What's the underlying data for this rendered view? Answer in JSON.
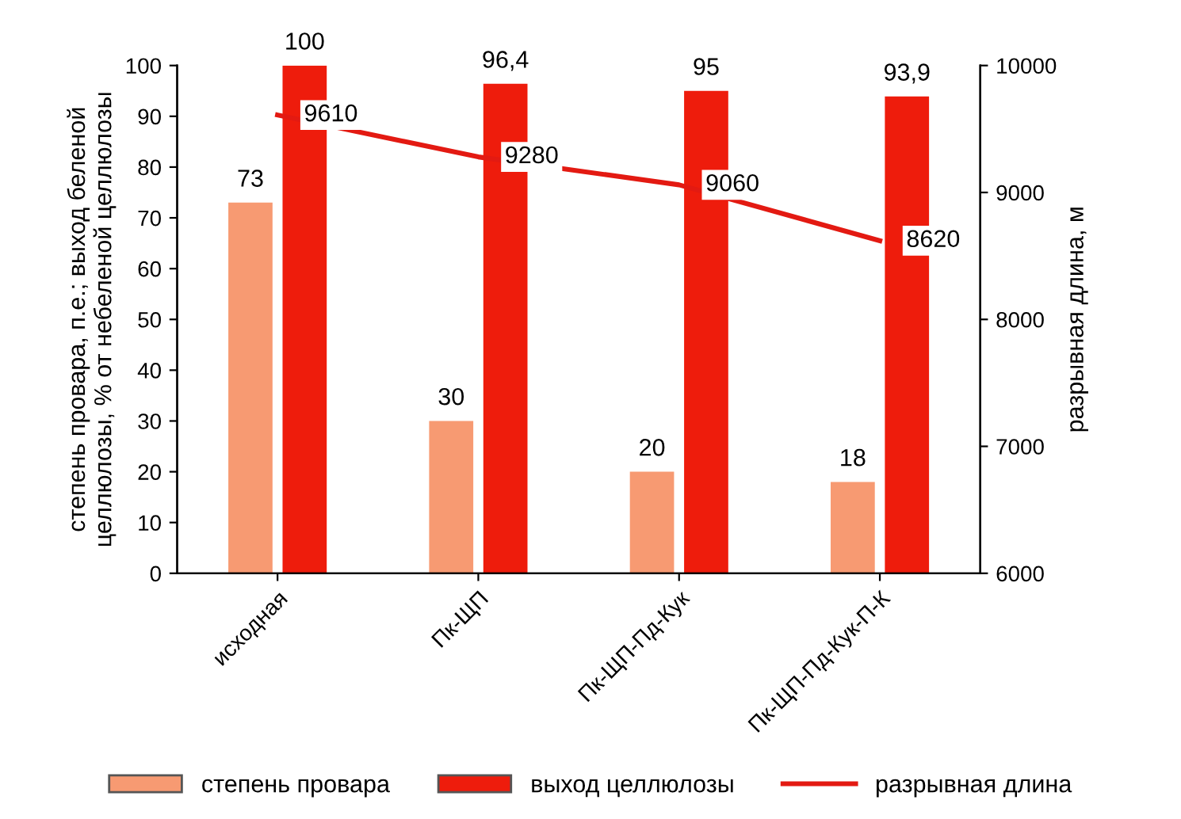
{
  "chart_data": {
    "type": "bar",
    "categories": [
      "исходная",
      "Пк-ЩП",
      "Пк-ЩП-Пд-Кук",
      "Пк-ЩП-Пд-Кук-П-К"
    ],
    "series": [
      {
        "name": "степень провара",
        "color": "#f79a72",
        "values": [
          73,
          30,
          20,
          18
        ]
      },
      {
        "name": "выход целлюлозы",
        "color": "#ee1c0c",
        "values": [
          100,
          96.4,
          95,
          93.9
        ],
        "value_labels": [
          "100",
          "96,4",
          "95",
          "93,9"
        ]
      },
      {
        "name": "разрывная длина",
        "type": "line",
        "color": "#e31a12",
        "axis": "y2",
        "values": [
          9610,
          9280,
          9060,
          8620
        ]
      }
    ],
    "ylabel": "степень провара, п.е.; выход беленой\nцеллюлозы, % от небеленой целлюлозы",
    "y2label": "разрывная длина, м",
    "ylim": [
      0,
      100
    ],
    "yticks": [
      0,
      10,
      20,
      30,
      40,
      50,
      60,
      70,
      80,
      90,
      100
    ],
    "y2lim": [
      6000,
      10000
    ],
    "y2ticks": [
      6000,
      7000,
      8000,
      9000,
      10000
    ],
    "data_labels": true,
    "grid": false,
    "legend": "bottom",
    "marker": "none",
    "line_style": "solid"
  }
}
